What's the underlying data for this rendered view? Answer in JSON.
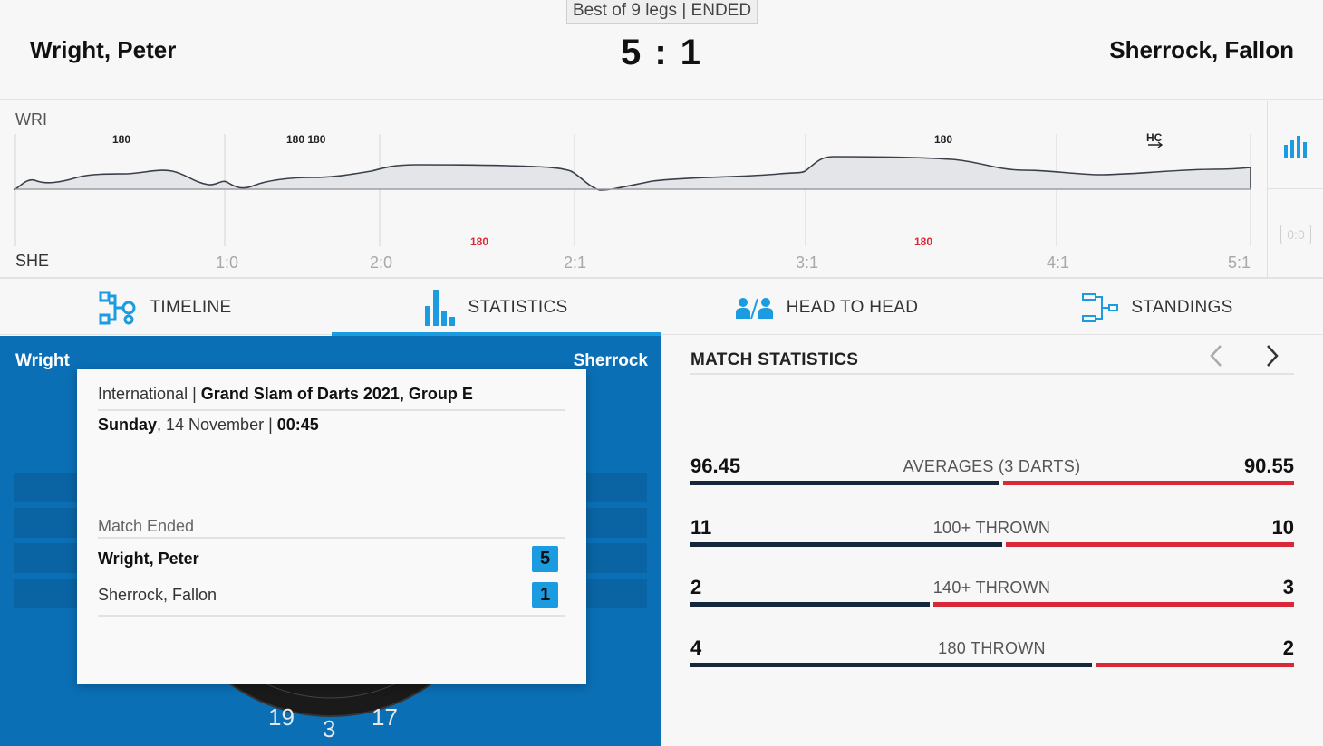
{
  "header": {
    "format": "Best of 9 legs | ENDED",
    "player_left": "Wright, Peter",
    "player_right": "Sherrock, Fallon",
    "score": "5 : 1"
  },
  "timeline": {
    "top_label": "WRI",
    "bottom_label": "SHE",
    "leg_scores": [
      "1:0",
      "2:0",
      "2:1",
      "3:1",
      "4:1",
      "5:1"
    ],
    "top_markers": [
      "180",
      "180 180",
      "180",
      "HC"
    ],
    "bottom_markers": [
      "180",
      "180"
    ],
    "mini_score": "0:0",
    "accent": "#1b9be0"
  },
  "tabs": [
    {
      "label": "TIMELINE",
      "icon": "timeline-icon",
      "active": false
    },
    {
      "label": "STATISTICS",
      "icon": "statistics-icon",
      "active": true
    },
    {
      "label": "HEAD TO HEAD",
      "icon": "head-to-head-icon",
      "active": false
    },
    {
      "label": "STANDINGS",
      "icon": "standings-icon",
      "active": false
    }
  ],
  "board": {
    "name_left": "Wright",
    "name_right": "Sherrock",
    "numbers": [
      "19",
      "3",
      "17"
    ]
  },
  "info_card": {
    "category": "International",
    "separator": "|",
    "competition": "Grand Slam of Darts 2021, Group E",
    "day": "Sunday",
    "date": ", 14 November | ",
    "time": "00:45",
    "status": "Match Ended",
    "home_name": "Wright, Peter",
    "home_score": "5",
    "away_name": "Sherrock, Fallon",
    "away_score": "1"
  },
  "match_statistics": {
    "title": "MATCH STATISTICS",
    "rows": [
      {
        "label": "AVERAGES (3 DARTS)",
        "left": "96.45",
        "right": "90.55",
        "left_share": 0.516
      },
      {
        "label": "100+ THROWN",
        "left": "11",
        "right": "10",
        "left_share": 0.52
      },
      {
        "label": "140+ THROWN",
        "left": "2",
        "right": "3",
        "left_share": 0.4
      },
      {
        "label": "180 THROWN",
        "left": "4",
        "right": "2",
        "left_share": 0.67
      }
    ],
    "left_color": "#15273d",
    "right_color": "#d92838"
  }
}
